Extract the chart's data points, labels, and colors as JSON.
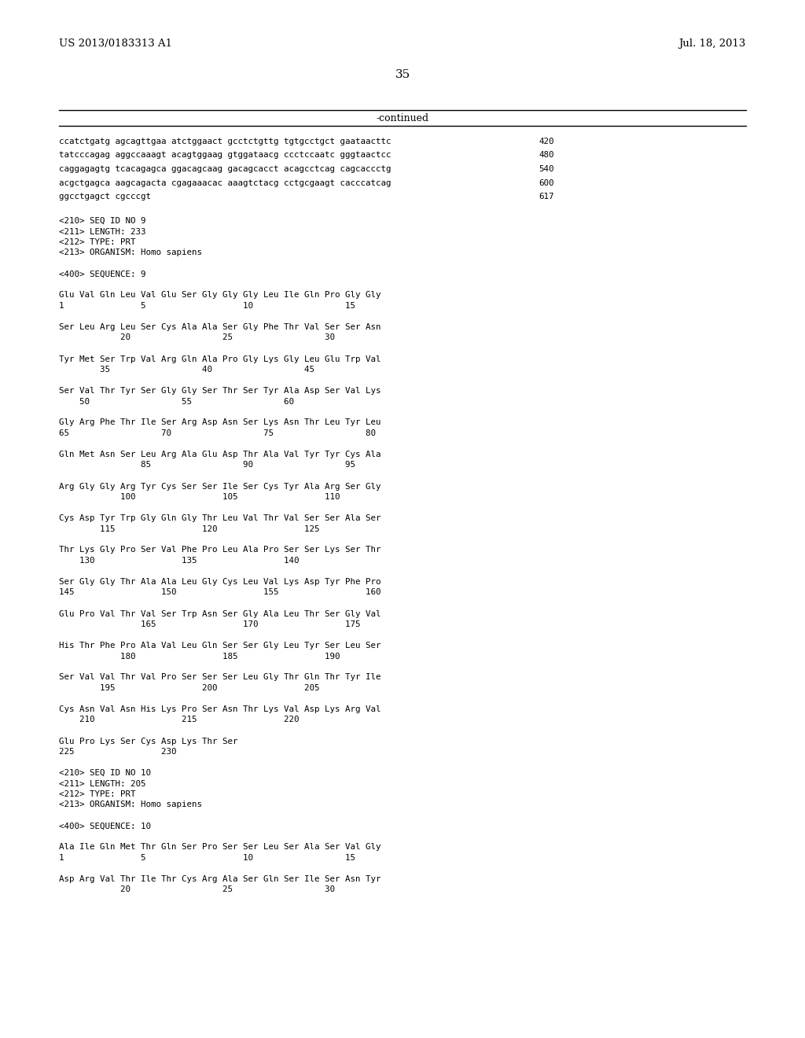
{
  "header_left": "US 2013/0183313 A1",
  "header_right": "Jul. 18, 2013",
  "page_number": "35",
  "continued": "-continued",
  "background_color": "#ffffff",
  "text_color": "#000000",
  "content": [
    {
      "type": "seq",
      "text": "ccatctgatg agcagttgaa atctggaact gcctctgttg tgtgcctgct gaataacttc",
      "num": "420"
    },
    {
      "type": "seq",
      "text": "tatcccagag aggccaaagt acagtggaag gtggataacg ccctccaatc gggtaactcc",
      "num": "480"
    },
    {
      "type": "seq",
      "text": "caggagagtg tcacagagca ggacagcaag gacagcacct acagcctcag cagcaccctg",
      "num": "540"
    },
    {
      "type": "seq",
      "text": "acgctgagca aagcagacta cgagaaacac aaagtctacg cctgcgaagt cacccatcag",
      "num": "600"
    },
    {
      "type": "seq",
      "text": "ggcctgagct cgcccgt",
      "num": "617"
    },
    {
      "type": "blank"
    },
    {
      "type": "meta",
      "text": "<210> SEQ ID NO 9"
    },
    {
      "type": "meta",
      "text": "<211> LENGTH: 233"
    },
    {
      "type": "meta",
      "text": "<212> TYPE: PRT"
    },
    {
      "type": "meta",
      "text": "<213> ORGANISM: Homo sapiens"
    },
    {
      "type": "blank"
    },
    {
      "type": "meta",
      "text": "<400> SEQUENCE: 9"
    },
    {
      "type": "blank"
    },
    {
      "type": "aa",
      "text": "Glu Val Gln Leu Val Glu Ser Gly Gly Gly Leu Ile Gln Pro Gly Gly"
    },
    {
      "type": "num",
      "text": "1               5                   10                  15"
    },
    {
      "type": "blank"
    },
    {
      "type": "aa",
      "text": "Ser Leu Arg Leu Ser Cys Ala Ala Ser Gly Phe Thr Val Ser Ser Asn"
    },
    {
      "type": "num",
      "text": "            20                  25                  30"
    },
    {
      "type": "blank"
    },
    {
      "type": "aa",
      "text": "Tyr Met Ser Trp Val Arg Gln Ala Pro Gly Lys Gly Leu Glu Trp Val"
    },
    {
      "type": "num",
      "text": "        35                  40                  45"
    },
    {
      "type": "blank"
    },
    {
      "type": "aa",
      "text": "Ser Val Thr Tyr Ser Gly Gly Ser Thr Ser Tyr Ala Asp Ser Val Lys"
    },
    {
      "type": "num",
      "text": "    50                  55                  60"
    },
    {
      "type": "blank"
    },
    {
      "type": "aa",
      "text": "Gly Arg Phe Thr Ile Ser Arg Asp Asn Ser Lys Asn Thr Leu Tyr Leu"
    },
    {
      "type": "num",
      "text": "65                  70                  75                  80"
    },
    {
      "type": "blank"
    },
    {
      "type": "aa",
      "text": "Gln Met Asn Ser Leu Arg Ala Glu Asp Thr Ala Val Tyr Tyr Cys Ala"
    },
    {
      "type": "num",
      "text": "                85                  90                  95"
    },
    {
      "type": "blank"
    },
    {
      "type": "aa",
      "text": "Arg Gly Gly Arg Tyr Cys Ser Ser Ile Ser Cys Tyr Ala Arg Ser Gly"
    },
    {
      "type": "num",
      "text": "            100                 105                 110"
    },
    {
      "type": "blank"
    },
    {
      "type": "aa",
      "text": "Cys Asp Tyr Trp Gly Gln Gly Thr Leu Val Thr Val Ser Ser Ala Ser"
    },
    {
      "type": "num",
      "text": "        115                 120                 125"
    },
    {
      "type": "blank"
    },
    {
      "type": "aa",
      "text": "Thr Lys Gly Pro Ser Val Phe Pro Leu Ala Pro Ser Ser Lys Ser Thr"
    },
    {
      "type": "num",
      "text": "    130                 135                 140"
    },
    {
      "type": "blank"
    },
    {
      "type": "aa",
      "text": "Ser Gly Gly Thr Ala Ala Leu Gly Cys Leu Val Lys Asp Tyr Phe Pro"
    },
    {
      "type": "num",
      "text": "145                 150                 155                 160"
    },
    {
      "type": "blank"
    },
    {
      "type": "aa",
      "text": "Glu Pro Val Thr Val Ser Trp Asn Ser Gly Ala Leu Thr Ser Gly Val"
    },
    {
      "type": "num",
      "text": "                165                 170                 175"
    },
    {
      "type": "blank"
    },
    {
      "type": "aa",
      "text": "His Thr Phe Pro Ala Val Leu Gln Ser Ser Gly Leu Tyr Ser Leu Ser"
    },
    {
      "type": "num",
      "text": "            180                 185                 190"
    },
    {
      "type": "blank"
    },
    {
      "type": "aa",
      "text": "Ser Val Val Thr Val Pro Ser Ser Ser Leu Gly Thr Gln Thr Tyr Ile"
    },
    {
      "type": "num",
      "text": "        195                 200                 205"
    },
    {
      "type": "blank"
    },
    {
      "type": "aa",
      "text": "Cys Asn Val Asn His Lys Pro Ser Asn Thr Lys Val Asp Lys Arg Val"
    },
    {
      "type": "num",
      "text": "    210                 215                 220"
    },
    {
      "type": "blank"
    },
    {
      "type": "aa",
      "text": "Glu Pro Lys Ser Cys Asp Lys Thr Ser"
    },
    {
      "type": "num",
      "text": "225                 230"
    },
    {
      "type": "blank"
    },
    {
      "type": "meta",
      "text": "<210> SEQ ID NO 10"
    },
    {
      "type": "meta",
      "text": "<211> LENGTH: 205"
    },
    {
      "type": "meta",
      "text": "<212> TYPE: PRT"
    },
    {
      "type": "meta",
      "text": "<213> ORGANISM: Homo sapiens"
    },
    {
      "type": "blank"
    },
    {
      "type": "meta",
      "text": "<400> SEQUENCE: 10"
    },
    {
      "type": "blank"
    },
    {
      "type": "aa",
      "text": "Ala Ile Gln Met Thr Gln Ser Pro Ser Ser Leu Ser Ala Ser Val Gly"
    },
    {
      "type": "num",
      "text": "1               5                   10                  15"
    },
    {
      "type": "blank"
    },
    {
      "type": "aa",
      "text": "Asp Arg Val Thr Ile Thr Cys Arg Ala Ser Gln Ser Ile Ser Asn Tyr"
    },
    {
      "type": "num",
      "text": "            20                  25                  30"
    }
  ]
}
